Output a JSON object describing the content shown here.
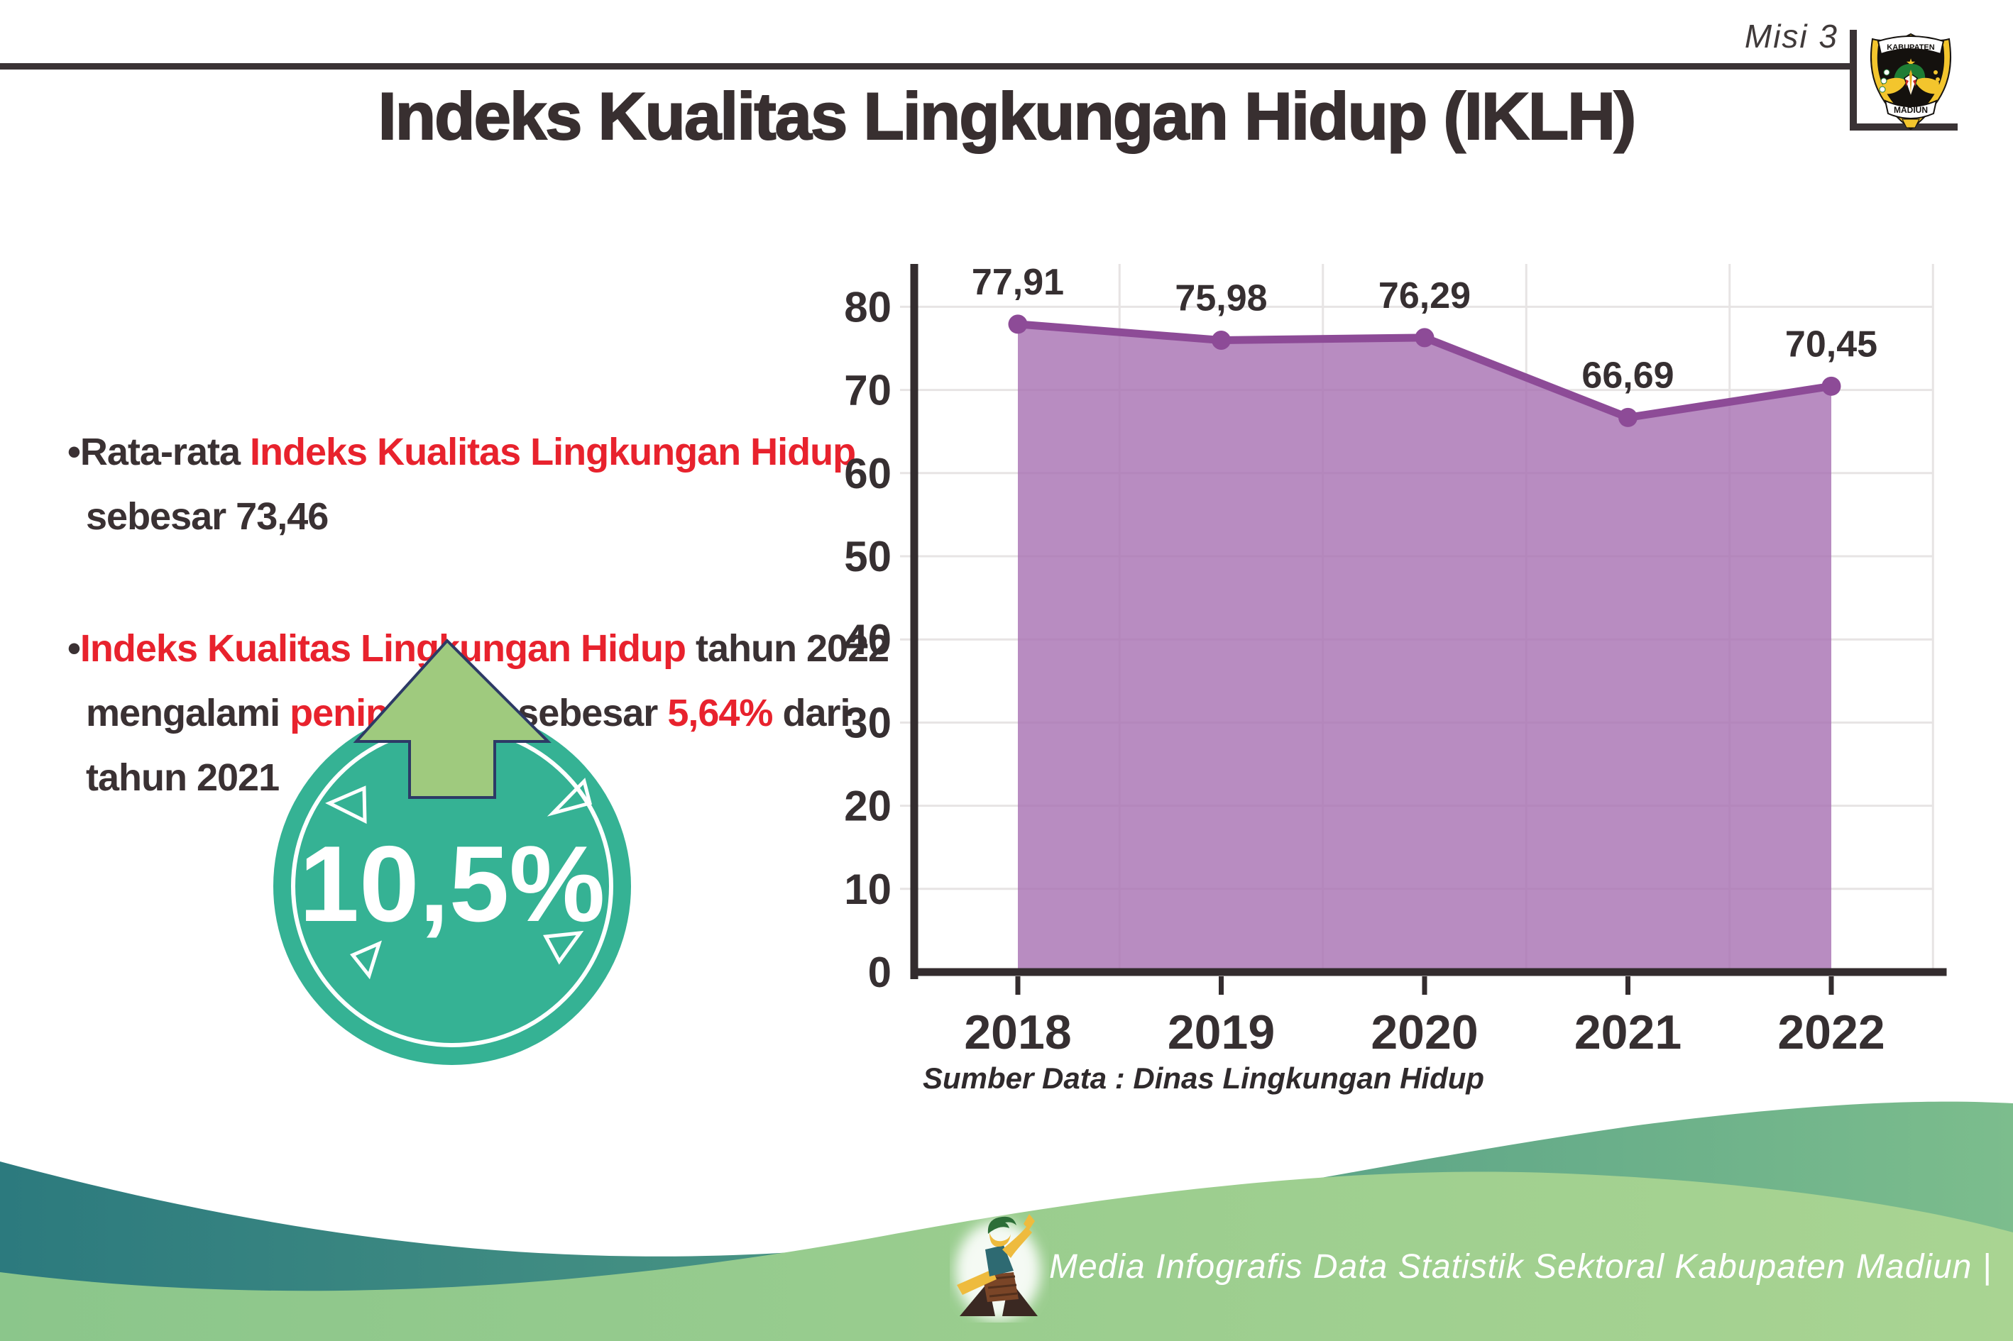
{
  "header": {
    "misi_label": "Misi 3",
    "logo": {
      "top_banner": "KABUPATEN",
      "bottom_banner": "MADIUN"
    }
  },
  "title": "Indeks Kualitas Lingkungan Hidup (IKLH)",
  "bullets": {
    "bullet_mark": "•",
    "b1": {
      "pre": "Rata-rata ",
      "red": "Indeks Kualitas Lingkungan Hidup",
      "line2": "sebesar 73,46"
    },
    "b2": {
      "red1": "Indeks Kualitas Lingkungan Hidup",
      "post1": " tahun 2022",
      "l2a": "mengalami ",
      "l2red": "peningkatan",
      "l2b": " sebesar ",
      "l2red2": "5,64%",
      "l2c": " dari",
      "line3": "tahun 2021"
    }
  },
  "badge": {
    "value": "10,5%"
  },
  "chart_data": {
    "type": "area",
    "title": "",
    "xlabel": "",
    "ylabel": "",
    "categories": [
      "2018",
      "2019",
      "2020",
      "2021",
      "2022"
    ],
    "values": [
      77.91,
      75.98,
      76.29,
      66.69,
      70.45
    ],
    "point_labels": [
      "77,91",
      "75,98",
      "76,29",
      "66,69",
      "70,45"
    ],
    "ylim": [
      0,
      85
    ],
    "yticks": [
      0,
      10,
      20,
      30,
      40,
      50,
      60,
      70,
      80
    ],
    "grid": true,
    "legend_position": "none",
    "area_color": "#a873b3",
    "line_color": "#8d4b97",
    "label_color": "#362f31",
    "axis_color": "#332c2e",
    "grid_color": "#e7e4e4"
  },
  "source_note": "Sumber Data : Dinas Lingkungan Hidup",
  "footer": {
    "text": "Media Infografis Data Statistik Sektoral Kabupaten Madiun |"
  },
  "colors": {
    "accent_red": "#e8222d",
    "text_dark": "#3a3133",
    "badge_teal": "#35b294",
    "arrow_green": "#9fca7e",
    "footer_teal": "#2c7a7e",
    "footer_green": "#a9d492"
  }
}
